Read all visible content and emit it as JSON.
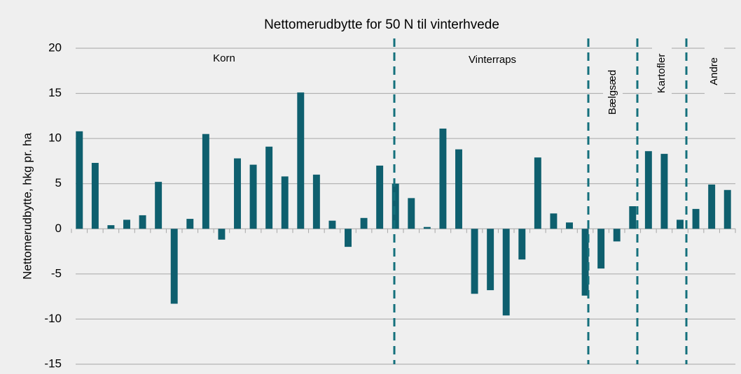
{
  "chart_data": {
    "type": "bar",
    "title": "Nettomerudbytte for 50 N til vinterhvede",
    "y_label": "Nettomerudbytte, hkg pr. ha",
    "categories": [
      null,
      null,
      null,
      null,
      null,
      null,
      null,
      null,
      null,
      null,
      null,
      null,
      null,
      null,
      null,
      null,
      null,
      null,
      null,
      null,
      null,
      null,
      null,
      null,
      null,
      null,
      null,
      null,
      null,
      null,
      null,
      null,
      null,
      null,
      null,
      null,
      null,
      null,
      null,
      null,
      null,
      null
    ],
    "values": [
      10.8,
      7.3,
      0.4,
      1.0,
      1.5,
      5.2,
      -8.3,
      1.1,
      10.5,
      -1.2,
      7.8,
      7.1,
      9.1,
      5.8,
      15.1,
      6.0,
      0.9,
      -2.0,
      1.2,
      7.0,
      5.0,
      3.4,
      0.2,
      11.1,
      8.8,
      -7.2,
      -6.8,
      -9.6,
      -3.4,
      7.9,
      1.7,
      0.7,
      -7.4,
      -4.4,
      -1.4,
      2.5,
      8.6,
      8.3,
      1.0,
      2.2,
      4.9,
      4.3
    ],
    "color": "#0e5f6e",
    "ylim": [
      -15,
      20
    ],
    "yticks": [
      -15,
      -10,
      -5,
      0,
      5,
      10,
      15,
      20
    ],
    "grid": true,
    "groups": [
      "Korn",
      "Vinterraps",
      "Bælgsæd",
      "Kartofler",
      "Andre"
    ]
  }
}
